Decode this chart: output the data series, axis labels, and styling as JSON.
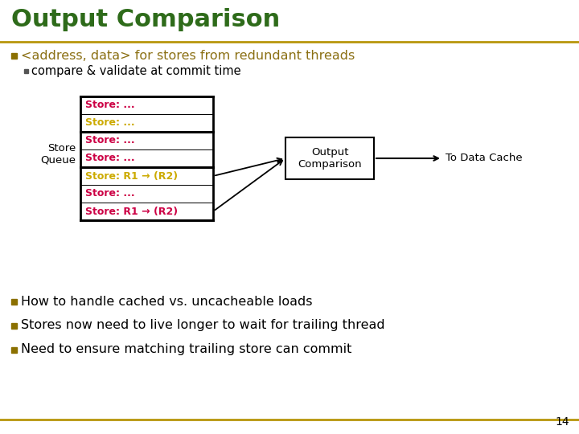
{
  "title": "Output Comparison",
  "title_color": "#2E6B1A",
  "title_fontsize": 22,
  "bg_color": "#FFFFFF",
  "gold_line_color": "#B8960C",
  "bullet_color": "#8B7000",
  "bullet1_text": "<address, data> for stores from redundant threads",
  "bullet1_color": "#8B7014",
  "sub_bullet_text": "compare & validate at commit time",
  "sub_bullet_color": "#000000",
  "store_queue_label": "Store\nQueue",
  "store_rows": [
    {
      "text": "Store: ...",
      "color": "#CC0044"
    },
    {
      "text": "Store: ...",
      "color": "#CCAA00"
    },
    {
      "text": "Store: ...",
      "color": "#CC0044"
    },
    {
      "text": "Store: ...",
      "color": "#CC0044"
    },
    {
      "text": "Store: R1 → (R2)",
      "color": "#CCAA00"
    },
    {
      "text": "Store: ...",
      "color": "#CC0044"
    },
    {
      "text": "Store: R1 → (R2)",
      "color": "#CC0044"
    }
  ],
  "output_box_text": "Output\nComparison",
  "arrow_label": "To Data Cache",
  "bottom_bullets": [
    "How to handle cached vs. uncacheable loads",
    "Stores now need to live longer to wait for trailing thread",
    "Need to ensure matching trailing store can commit"
  ],
  "bottom_bullet_color": "#000000",
  "page_number": "14"
}
